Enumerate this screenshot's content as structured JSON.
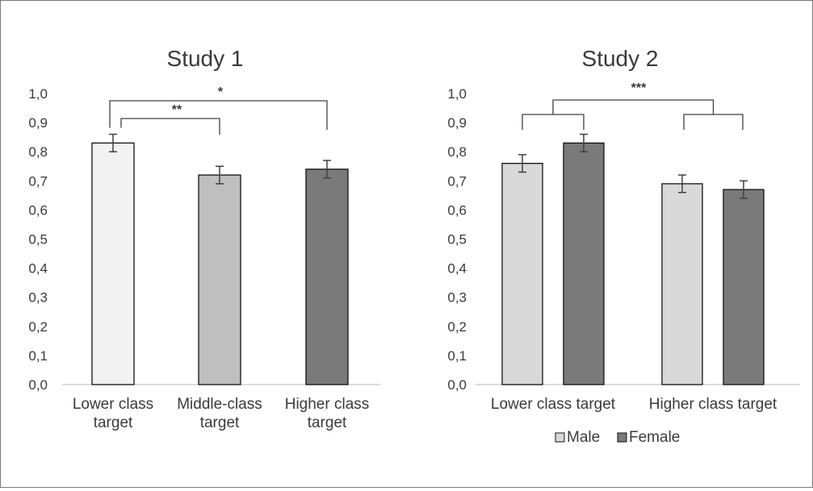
{
  "chart_data": [
    {
      "type": "bar",
      "title": "Study 1",
      "categories": [
        "Lower class\ntarget",
        "Middle-class\ntarget",
        "Higher class\ntarget"
      ],
      "values": [
        0.83,
        0.72,
        0.74
      ],
      "error": [
        0.03,
        0.03,
        0.03
      ],
      "ylim": [
        0.0,
        1.0
      ],
      "yticks": [
        "0,0",
        "0,1",
        "0,2",
        "0,3",
        "0,4",
        "0,5",
        "0,6",
        "0,7",
        "0,8",
        "0,9",
        "1,0"
      ],
      "bar_colors": [
        "#f2f2f2",
        "#bfbfbf",
        "#7a7a7a"
      ],
      "significance": [
        {
          "from": 0,
          "to": 1,
          "label": "**"
        },
        {
          "from": 0,
          "to": 2,
          "label": "*"
        }
      ]
    },
    {
      "type": "bar",
      "title": "Study 2",
      "categories": [
        "Lower class target",
        "Higher class target"
      ],
      "series": [
        {
          "name": "Male",
          "values": [
            0.76,
            0.69
          ],
          "error": [
            0.03,
            0.03
          ],
          "color": "#d9d9d9"
        },
        {
          "name": "Female",
          "values": [
            0.83,
            0.67
          ],
          "error": [
            0.03,
            0.03
          ],
          "color": "#7a7a7a"
        }
      ],
      "ylim": [
        0.0,
        1.0
      ],
      "yticks": [
        "0,0",
        "0,1",
        "0,2",
        "0,3",
        "0,4",
        "0,5",
        "0,6",
        "0,7",
        "0,8",
        "0,9",
        "1,0"
      ],
      "legend": "bottom",
      "significance": [
        {
          "from": 0,
          "to": 1,
          "label": "***"
        }
      ]
    }
  ]
}
